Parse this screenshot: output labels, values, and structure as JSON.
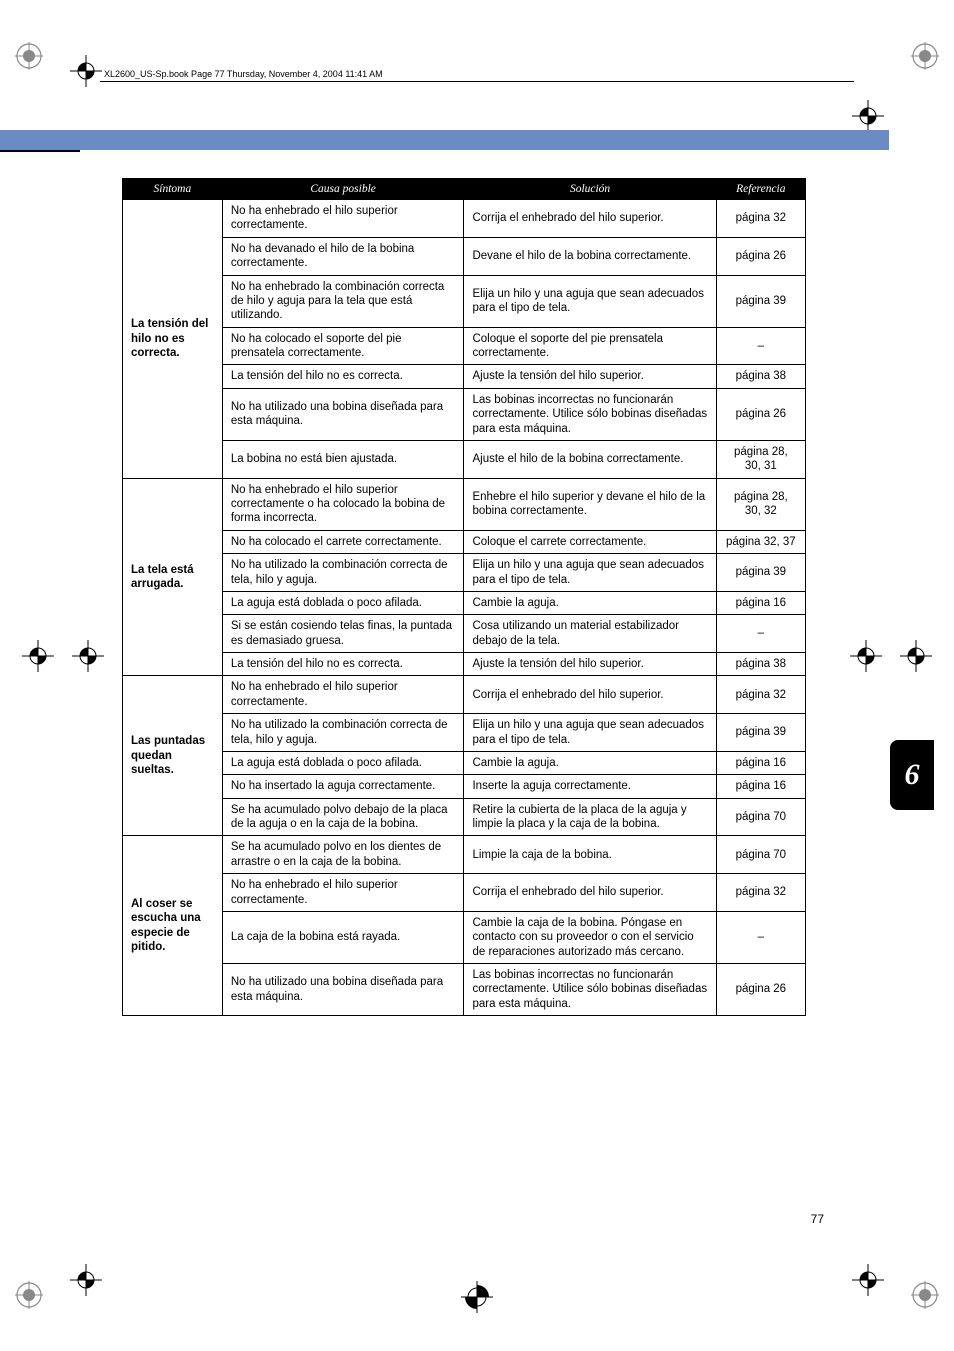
{
  "header_text": "XL2600_US-Sp.book  Page 77  Thursday, November 4, 2004  11:41 AM",
  "page_number": "77",
  "tab_number": "6",
  "columns": {
    "sintoma": "Síntoma",
    "causa": "Causa posible",
    "solucion": "Solución",
    "referencia": "Referencia"
  },
  "groups": [
    {
      "symptom": "La tensión del hilo no es correcta.",
      "rows": [
        {
          "cause": "No ha enhebrado el hilo superior correctamente.",
          "solution": "Corrija el enhebrado del hilo superior.",
          "ref": "página 32"
        },
        {
          "cause": "No ha devanado el hilo de la bobina correctamente.",
          "solution": "Devane el hilo de la bobina correctamente.",
          "ref": "página 26"
        },
        {
          "cause": "No ha enhebrado la combinación correcta de hilo y aguja para la tela que está utilizando.",
          "solution": "Elija un hilo y una aguja que sean adecuados para el tipo de tela.",
          "ref": "página 39"
        },
        {
          "cause": "No ha colocado el soporte del pie prensatela correctamente.",
          "solution": "Coloque el soporte del pie prensatela correctamente.",
          "ref": "–"
        },
        {
          "cause": "La tensión del hilo no es correcta.",
          "solution": "Ajuste la tensión del hilo superior.",
          "ref": "página 38"
        },
        {
          "cause": "No ha utilizado una bobina diseñada para esta máquina.",
          "solution": "Las bobinas incorrectas no funcionarán correctamente. Utilice sólo bobinas diseñadas para esta máquina.",
          "ref": "página 26"
        },
        {
          "cause": "La bobina no está bien ajustada.",
          "solution": "Ajuste el hilo de la bobina correctamente.",
          "ref": "página 28, 30, 31"
        }
      ]
    },
    {
      "symptom": "La tela está arrugada.",
      "rows": [
        {
          "cause": "No ha enhebrado el hilo superior correctamente o ha colocado la bobina de forma incorrecta.",
          "solution": "Enhebre el hilo superior y devane el hilo de la bobina correctamente.",
          "ref": "página 28, 30, 32"
        },
        {
          "cause": "No ha colocado el carrete correctamente.",
          "solution": "Coloque el carrete correctamente.",
          "ref": "página 32, 37"
        },
        {
          "cause": "No ha utilizado la combinación correcta de tela, hilo y aguja.",
          "solution": "Elija un hilo y una aguja que sean adecuados para el tipo de tela.",
          "ref": "página 39"
        },
        {
          "cause": "La aguja está doblada o poco afilada.",
          "solution": "Cambie la aguja.",
          "ref": "página 16"
        },
        {
          "cause": "Si se están cosiendo telas finas, la puntada es demasiado gruesa.",
          "solution": "Cosa utilizando un material estabilizador debajo de la tela.",
          "ref": "–"
        },
        {
          "cause": "La tensión del hilo no es correcta.",
          "solution": "Ajuste la tensión del hilo superior.",
          "ref": "página 38"
        }
      ]
    },
    {
      "symptom": "Las puntadas quedan sueltas.",
      "rows": [
        {
          "cause": "No ha enhebrado el hilo superior correctamente.",
          "solution": "Corrija el enhebrado del hilo superior.",
          "ref": "página 32"
        },
        {
          "cause": "No ha utilizado la combinación correcta de tela, hilo y aguja.",
          "solution": "Elija un hilo y una aguja que sean adecuados para el tipo de tela.",
          "ref": "página 39"
        },
        {
          "cause": "La aguja está doblada o poco afilada.",
          "solution": "Cambie la aguja.",
          "ref": "página 16"
        },
        {
          "cause": "No ha insertado la aguja correctamente.",
          "solution": "Inserte la aguja correctamente.",
          "ref": "página 16"
        },
        {
          "cause": "Se ha acumulado polvo debajo de la placa de la aguja o en la caja de la bobina.",
          "solution": "Retire la cubierta de la placa de la aguja y limpie la placa y la caja de la bobina.",
          "ref": "página 70"
        }
      ]
    },
    {
      "symptom": "Al coser se escucha una especie de pitido.",
      "rows": [
        {
          "cause": "Se ha acumulado polvo en los dientes de arrastre o en la caja de la bobina.",
          "solution": "Limpie la caja de la bobina.",
          "ref": "página 70"
        },
        {
          "cause": "No ha enhebrado el hilo superior correctamente.",
          "solution": "Corrija el enhebrado del hilo superior.",
          "ref": "página 32"
        },
        {
          "cause": "La caja de la bobina está rayada.",
          "solution": "Cambie la caja de la bobina. Póngase en contacto con su proveedor o con el servicio de reparaciones autorizado más cercano.",
          "ref": "–"
        },
        {
          "cause": "No ha utilizado una bobina diseñada para esta máquina.",
          "solution": "Las bobinas incorrectas no funcionarán correctamente. Utilice sólo bobinas diseñadas para esta máquina.",
          "ref": "página 26"
        }
      ]
    }
  ]
}
